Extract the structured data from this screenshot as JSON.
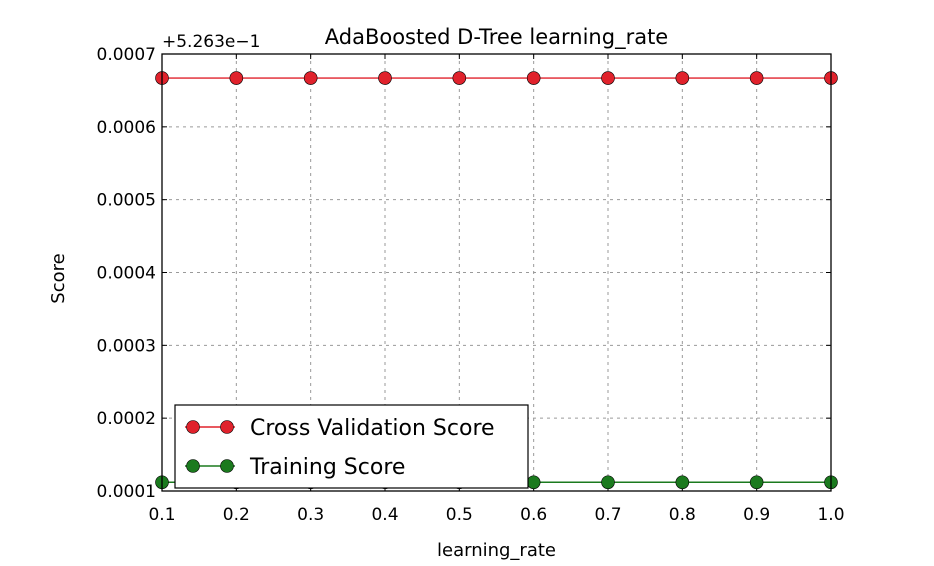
{
  "chart_data": {
    "type": "line",
    "title": "AdaBoosted D-Tree learning_rate",
    "xlabel": "learning_rate",
    "ylabel": "Score",
    "offset_text": "+5.263e−1",
    "x": [
      0.1,
      0.2,
      0.3,
      0.4,
      0.5,
      0.6,
      0.7,
      0.8,
      0.9,
      1.0
    ],
    "xlim": [
      0.1,
      1.0
    ],
    "ylim": [
      0.0001,
      0.0007
    ],
    "x_ticks": [
      "0.1",
      "0.2",
      "0.3",
      "0.4",
      "0.5",
      "0.6",
      "0.7",
      "0.8",
      "0.9",
      "1.0"
    ],
    "y_ticks": [
      "0.0001",
      "0.0002",
      "0.0003",
      "0.0004",
      "0.0005",
      "0.0006",
      "0.0007"
    ],
    "grid": true,
    "legend_position": "lower-left",
    "series": [
      {
        "name": "Cross Validation Score",
        "color": "#e0222c",
        "values": [
          0.000667,
          0.000667,
          0.000667,
          0.000667,
          0.000667,
          0.000667,
          0.000667,
          0.000667,
          0.000667,
          0.000667
        ]
      },
      {
        "name": "Training Score",
        "color": "#1b7a1e",
        "values": [
          0.000112,
          0.000112,
          0.000112,
          0.000112,
          0.000112,
          0.000112,
          0.000112,
          0.000112,
          0.000112,
          0.000112
        ]
      }
    ]
  }
}
